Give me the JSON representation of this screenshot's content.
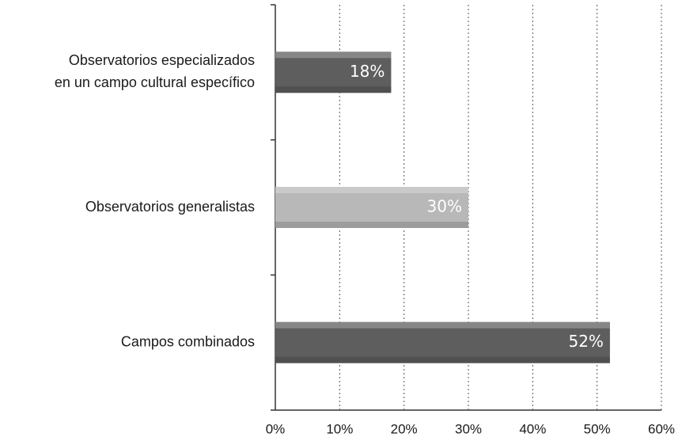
{
  "chart_data": {
    "type": "bar",
    "orientation": "horizontal",
    "categories": [
      [
        "Observatorios especializados",
        "en un campo cultural específico"
      ],
      [
        "Observatorios generalistas"
      ],
      [
        "Campos combinados"
      ]
    ],
    "values": [
      18,
      30,
      52
    ],
    "value_labels": [
      "18%",
      "30%",
      "52%"
    ],
    "colors": [
      "#5e5e5e",
      "#b8b8b8",
      "#5e5e5e"
    ],
    "xlim": [
      0,
      60
    ],
    "xticks": [
      {
        "value": 0,
        "label": "0%"
      },
      {
        "value": 10,
        "label": "10%"
      },
      {
        "value": 20,
        "label": "20%"
      },
      {
        "value": 30,
        "label": "30%"
      },
      {
        "value": 40,
        "label": "40%"
      },
      {
        "value": 50,
        "label": "50%"
      },
      {
        "value": 60,
        "label": "60%"
      }
    ],
    "grid": true
  }
}
